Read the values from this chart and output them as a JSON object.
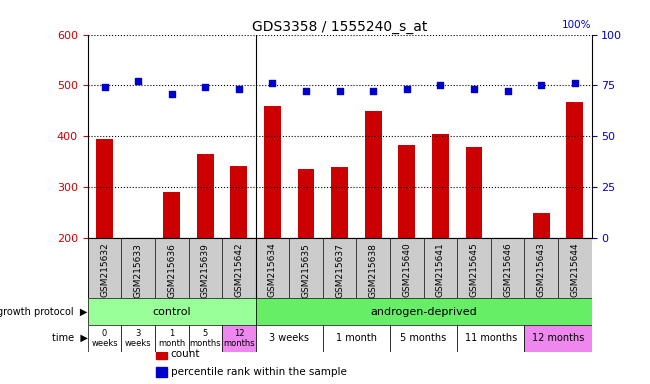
{
  "title": "GDS3358 / 1555240_s_at",
  "samples": [
    "GSM215632",
    "GSM215633",
    "GSM215636",
    "GSM215639",
    "GSM215642",
    "GSM215634",
    "GSM215635",
    "GSM215637",
    "GSM215638",
    "GSM215640",
    "GSM215641",
    "GSM215645",
    "GSM215646",
    "GSM215643",
    "GSM215644"
  ],
  "counts": [
    395,
    200,
    290,
    365,
    342,
    460,
    335,
    340,
    450,
    383,
    405,
    378,
    200,
    248,
    468
  ],
  "percentiles": [
    74,
    77,
    71,
    74,
    73,
    76,
    72,
    72,
    72,
    73,
    75,
    73,
    72,
    75,
    76
  ],
  "ylim_left": [
    200,
    600
  ],
  "ylim_right": [
    0,
    100
  ],
  "yticks_left": [
    200,
    300,
    400,
    500,
    600
  ],
  "yticks_right": [
    0,
    25,
    50,
    75,
    100
  ],
  "bar_color": "#cc0000",
  "dot_color": "#0000cc",
  "bg_color": "#ffffff",
  "protocol_row": [
    {
      "label": "control",
      "start": 0,
      "end": 5,
      "color": "#99ff99"
    },
    {
      "label": "androgen-deprived",
      "start": 5,
      "end": 15,
      "color": "#66ee66"
    }
  ],
  "time_row": [
    {
      "label": "0\nweeks",
      "start": 0,
      "end": 1
    },
    {
      "label": "3\nweeks",
      "start": 1,
      "end": 2
    },
    {
      "label": "1\nmonth",
      "start": 2,
      "end": 3
    },
    {
      "label": "5\nmonths",
      "start": 3,
      "end": 4
    },
    {
      "label": "12\nmonths",
      "start": 4,
      "end": 5
    },
    {
      "label": "3 weeks",
      "start": 5,
      "end": 7
    },
    {
      "label": "1 month",
      "start": 7,
      "end": 9
    },
    {
      "label": "5 months",
      "start": 9,
      "end": 11
    },
    {
      "label": "11 months",
      "start": 11,
      "end": 13
    },
    {
      "label": "12 months",
      "start": 13,
      "end": 15
    }
  ],
  "time_colors": [
    "#ffffff",
    "#ffffff",
    "#ffffff",
    "#ffffff",
    "#ee88ee",
    "#ffffff",
    "#ffffff",
    "#ffffff",
    "#ffffff",
    "#ee88ee"
  ],
  "legend_items": [
    {
      "color": "#cc0000",
      "label": "count"
    },
    {
      "color": "#0000cc",
      "label": "percentile rank within the sample"
    }
  ],
  "sample_bg": "#cccccc"
}
